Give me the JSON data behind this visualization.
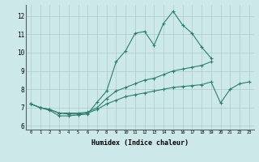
{
  "title": "",
  "xlabel": "Humidex (Indice chaleur)",
  "ylabel": "",
  "background_color": "#cce8e8",
  "grid_color": "#aacccc",
  "line_color": "#2e7d6e",
  "xlim": [
    -0.5,
    23.5
  ],
  "ylim": [
    5.8,
    12.6
  ],
  "xticks": [
    0,
    1,
    2,
    3,
    4,
    5,
    6,
    7,
    8,
    9,
    10,
    11,
    12,
    13,
    14,
    15,
    16,
    17,
    18,
    19,
    20,
    21,
    22,
    23
  ],
  "yticks": [
    6,
    7,
    8,
    9,
    10,
    11,
    12
  ],
  "series": [
    {
      "x": [
        0,
        1,
        2,
        3,
        4,
        5,
        6,
        7,
        8,
        9,
        10,
        11,
        12,
        13,
        14,
        15,
        16,
        17,
        18,
        19
      ],
      "y": [
        7.2,
        7.0,
        6.85,
        6.55,
        6.55,
        6.6,
        6.65,
        7.3,
        7.9,
        9.5,
        10.1,
        11.05,
        11.15,
        10.4,
        11.6,
        12.25,
        11.5,
        11.05,
        10.3,
        9.7
      ]
    },
    {
      "x": [
        0,
        1,
        2,
        3,
        4,
        5,
        6,
        7,
        8,
        9,
        10,
        11,
        12,
        13,
        14,
        15,
        16,
        17,
        18,
        19
      ],
      "y": [
        7.2,
        7.0,
        6.9,
        6.7,
        6.7,
        6.7,
        6.75,
        7.0,
        7.5,
        7.9,
        8.1,
        8.3,
        8.5,
        8.6,
        8.8,
        9.0,
        9.1,
        9.2,
        9.3,
        9.5
      ]
    },
    {
      "x": [
        0,
        1,
        2,
        3,
        4,
        5,
        6,
        7,
        8,
        9,
        10,
        11,
        12,
        13,
        14,
        15,
        16,
        17,
        18,
        19,
        20,
        21,
        22,
        23
      ],
      "y": [
        7.2,
        7.0,
        6.9,
        6.7,
        6.65,
        6.65,
        6.7,
        6.9,
        7.2,
        7.4,
        7.6,
        7.7,
        7.8,
        7.9,
        8.0,
        8.1,
        8.15,
        8.2,
        8.25,
        8.4,
        7.25,
        8.0,
        8.3,
        8.4
      ]
    }
  ]
}
